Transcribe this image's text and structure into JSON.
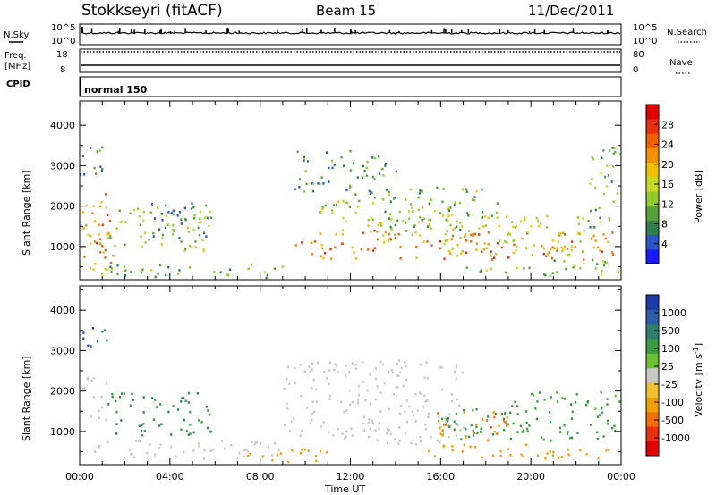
{
  "header": {
    "station": "Stokkseyri (fitACF)",
    "beam": "Beam 15",
    "date": "11/Dec/2011"
  },
  "noise_panel": {
    "left_label": "N.Sky",
    "right_label": "N.Search",
    "tick_top_left": "10^5",
    "tick_bottom_left": "10^0",
    "tick_top_right": "10^5",
    "tick_bottom_right": "10^0"
  },
  "freq_panel": {
    "left_label_line1": "Freq.",
    "left_label_line2": "[MHz]",
    "tick_top_left": "18",
    "tick_bottom_left": "8",
    "right_label": "Nave",
    "tick_top_right": "80",
    "tick_bottom_right": "0"
  },
  "cpid": {
    "label": "CPID",
    "value": "normal 150"
  },
  "colors": {
    "frame": "#000000",
    "background": "#ffffff",
    "ground_scatter": "#c8c8c4"
  },
  "chart_data": [
    {
      "type": "heatmap",
      "name": "power-panel",
      "ylabel": "Slant Range [km]",
      "yticks": [
        "1000",
        "2000",
        "3000",
        "4000"
      ],
      "ylim": [
        180,
        4600
      ],
      "xlim": [
        0,
        24
      ],
      "colorbar": {
        "label": "Power [dB]",
        "ticks": [
          "4",
          "8",
          "12",
          "16",
          "20",
          "24",
          "28"
        ],
        "range": [
          0,
          32
        ],
        "colors": [
          "#1a1aff",
          "#2b55c8",
          "#2f7f4c",
          "#5aa03a",
          "#8fcc2c",
          "#c8d820",
          "#f0c000",
          "#f59000",
          "#f06000",
          "#e83010",
          "#e00000"
        ]
      },
      "echo_regions": [
        {
          "t0": 0.1,
          "t1": 1.2,
          "r0": 300,
          "r1": 2400,
          "power": 20
        },
        {
          "t0": 0.5,
          "t1": 1.5,
          "r0": 600,
          "r1": 1900,
          "power": 26
        },
        {
          "t0": 1.2,
          "t1": 5.8,
          "r0": 900,
          "r1": 2000,
          "power": 13
        },
        {
          "t0": 3.0,
          "t1": 5.8,
          "r0": 1200,
          "r1": 2200,
          "power": 7
        },
        {
          "t0": 0.0,
          "t1": 1.3,
          "r0": 2800,
          "r1": 3600,
          "power": 8
        },
        {
          "t0": 1.0,
          "t1": 9.5,
          "r0": 250,
          "r1": 600,
          "power": 10
        },
        {
          "t0": 9.5,
          "t1": 24,
          "r0": 700,
          "r1": 1400,
          "power": 24
        },
        {
          "t0": 10.5,
          "t1": 16.5,
          "r0": 1300,
          "r1": 2200,
          "power": 15
        },
        {
          "t0": 13.0,
          "t1": 18.5,
          "r0": 1400,
          "r1": 2500,
          "power": 10
        },
        {
          "t0": 16.0,
          "t1": 22.5,
          "r0": 800,
          "r1": 1800,
          "power": 16
        },
        {
          "t0": 17.0,
          "t1": 24,
          "r0": 300,
          "r1": 700,
          "power": 12
        },
        {
          "t0": 9.5,
          "t1": 14.0,
          "r0": 2300,
          "r1": 3400,
          "power": 8
        },
        {
          "t0": 22.5,
          "t1": 24,
          "r0": 1500,
          "r1": 3500,
          "power": 10
        }
      ]
    },
    {
      "type": "heatmap",
      "name": "velocity-panel",
      "xlabel": "Time UT",
      "ylabel": "Slant Range [km]",
      "xticks": [
        "00:00",
        "04:00",
        "08:00",
        "12:00",
        "16:00",
        "20:00",
        "00:00"
      ],
      "yticks": [
        "1000",
        "2000",
        "3000",
        "4000"
      ],
      "ylim": [
        180,
        4600
      ],
      "xlim": [
        0,
        24
      ],
      "colorbar": {
        "label": "Velocity [m s",
        "label_sup": "-1",
        "label_end": "]",
        "ticks": [
          "1000",
          "500",
          "100",
          "25",
          "-25",
          "-100",
          "-500",
          "-1000"
        ],
        "colors": [
          "#1e3aa8",
          "#2f5aa8",
          "#2f7f6a",
          "#3a9a40",
          "#6cc030",
          "#c8c8c4",
          "#f0c030",
          "#f0a000",
          "#f07000",
          "#e83010",
          "#e00000"
        ]
      },
      "echo_regions": [
        {
          "t0": 0.1,
          "t1": 1.2,
          "r0": 1300,
          "r1": 2400,
          "vel": 0
        },
        {
          "t0": 1.2,
          "t1": 5.8,
          "r0": 900,
          "r1": 2000,
          "vel": 300
        },
        {
          "t0": 0.0,
          "t1": 9.0,
          "r0": 350,
          "r1": 800,
          "vel": 0
        },
        {
          "t0": 0.0,
          "t1": 1.2,
          "r0": 2900,
          "r1": 3600,
          "vel": 800
        },
        {
          "t0": 7.0,
          "t1": 11.0,
          "r0": 250,
          "r1": 600,
          "vel": -200
        },
        {
          "t0": 9.0,
          "t1": 17.0,
          "r0": 700,
          "r1": 2800,
          "vel": 0
        },
        {
          "t0": 16.0,
          "t1": 24,
          "r0": 800,
          "r1": 1600,
          "vel": 200
        },
        {
          "t0": 15.5,
          "t1": 19.0,
          "r0": 800,
          "r1": 1500,
          "vel": -300
        },
        {
          "t0": 15.0,
          "t1": 24,
          "r0": 350,
          "r1": 700,
          "vel": -200
        },
        {
          "t0": 19.0,
          "t1": 24,
          "r0": 1500,
          "r1": 2000,
          "vel": 150
        }
      ]
    }
  ]
}
